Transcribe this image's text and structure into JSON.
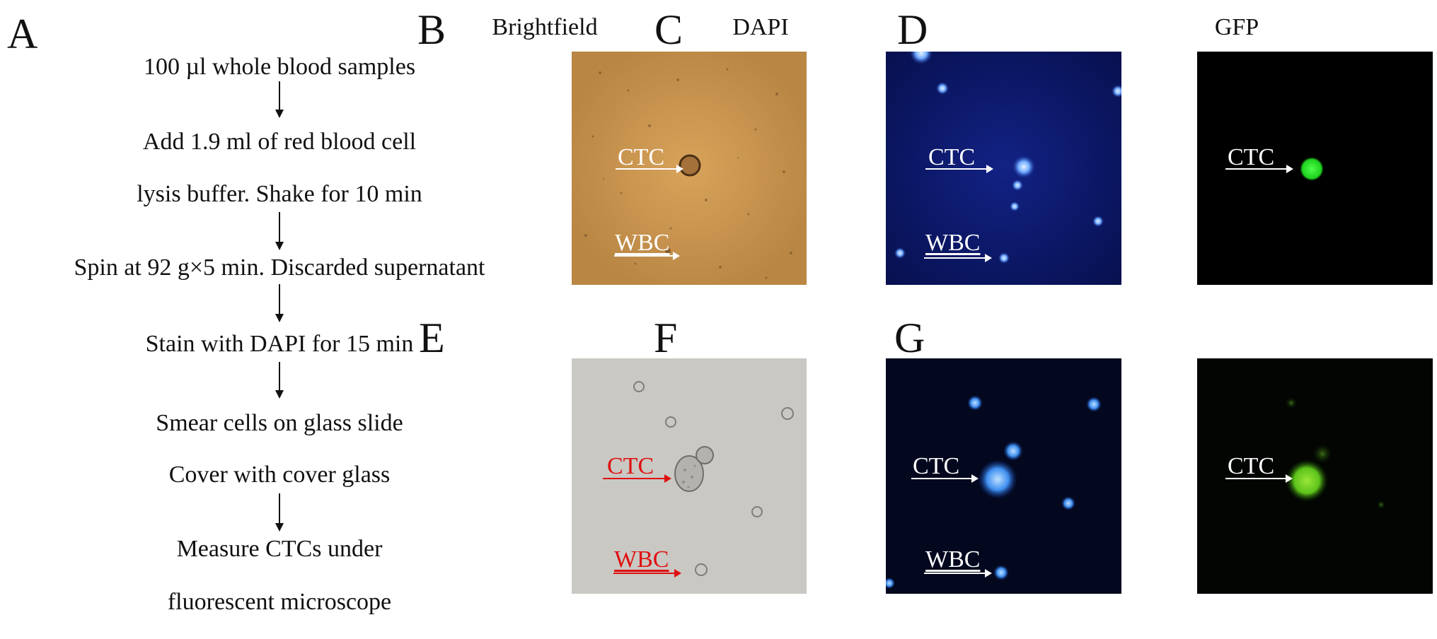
{
  "panels": {
    "A": "A",
    "B": "B",
    "C": "C",
    "D": "D",
    "E": "E",
    "F": "F",
    "G": "G"
  },
  "column_titles": {
    "brightfield": "Brightfield",
    "dapi": "DAPI",
    "gfp": "GFP"
  },
  "workflow_steps": [
    "100 µl whole blood samples",
    "Add 1.9 ml of red blood cell",
    "lysis buffer. Shake for 10 min",
    "Spin at 92 g×5 min. Discarded supernatant",
    "Stain with DAPI for 15 min",
    "Smear cells on glass slide",
    "Cover with cover glass",
    "Measure CTCs under",
    "fluorescent microscope"
  ],
  "cell_labels": {
    "ctc": "CTC",
    "wbc": "WBC"
  },
  "colors": {
    "brightfield_top_bg": "#c9954e",
    "brightfield_bottom_bg": "#c8c7c2",
    "dapi_bg": "#0a1660",
    "dapi_bottom_bg": "#02061f",
    "gfp_bg": "#000000",
    "label_white": "#ffffff",
    "label_red": "#e01010"
  }
}
